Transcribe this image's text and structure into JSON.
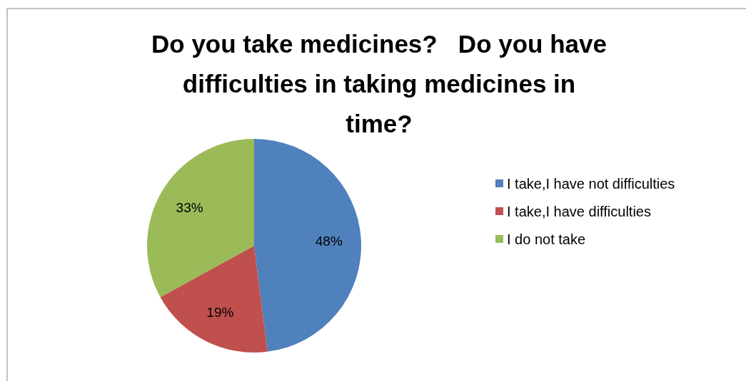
{
  "chart_data": {
    "type": "pie",
    "title": "Do you take medicines?   Do you have difficulties in taking medicines in time?",
    "categories": [
      "I take,I have not difficulties",
      "I take,I have difficulties",
      "I do not take"
    ],
    "values": [
      48,
      19,
      33
    ],
    "colors": [
      "#4f81bd",
      "#c0504d",
      "#9bbb59"
    ],
    "value_labels": [
      "48%",
      "19%",
      "33%"
    ],
    "legend": "right"
  }
}
